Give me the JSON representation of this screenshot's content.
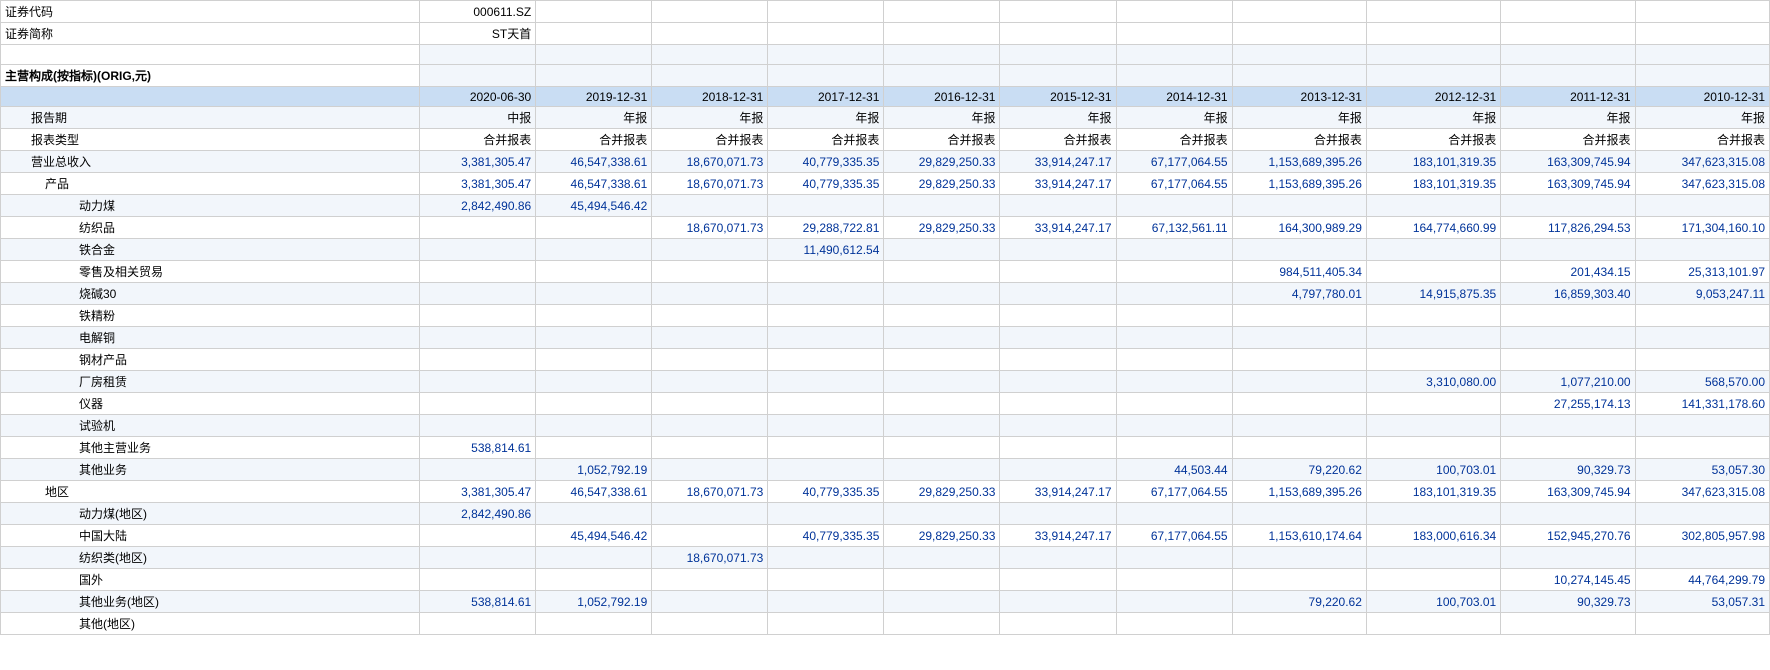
{
  "meta": {
    "code_label": "证券代码",
    "code_value": "000611.SZ",
    "name_label": "证券简称",
    "name_value": "ST天首"
  },
  "sectionTitle": "主营构成(按指标)(ORIG,元)",
  "dates": [
    "2020-06-30",
    "2019-12-31",
    "2018-12-31",
    "2017-12-31",
    "2016-12-31",
    "2015-12-31",
    "2014-12-31",
    "2013-12-31",
    "2012-12-31",
    "2011-12-31",
    "2010-12-31"
  ],
  "rows": [
    {
      "label": "报告期",
      "indent": 1,
      "style": "text",
      "vals": [
        "中报",
        "年报",
        "年报",
        "年报",
        "年报",
        "年报",
        "年报",
        "年报",
        "年报",
        "年报",
        "年报"
      ]
    },
    {
      "label": "报表类型",
      "indent": 1,
      "style": "text",
      "vals": [
        "合并报表",
        "合并报表",
        "合并报表",
        "合并报表",
        "合并报表",
        "合并报表",
        "合并报表",
        "合并报表",
        "合并报表",
        "合并报表",
        "合并报表"
      ]
    },
    {
      "label": "营业总收入",
      "indent": 1,
      "style": "num",
      "vals": [
        "3,381,305.47",
        "46,547,338.61",
        "18,670,071.73",
        "40,779,335.35",
        "29,829,250.33",
        "33,914,247.17",
        "67,177,064.55",
        "1,153,689,395.26",
        "183,101,319.35",
        "163,309,745.94",
        "347,623,315.08"
      ]
    },
    {
      "label": "产品",
      "indent": 2,
      "style": "num",
      "vals": [
        "3,381,305.47",
        "46,547,338.61",
        "18,670,071.73",
        "40,779,335.35",
        "29,829,250.33",
        "33,914,247.17",
        "67,177,064.55",
        "1,153,689,395.26",
        "183,101,319.35",
        "163,309,745.94",
        "347,623,315.08"
      ]
    },
    {
      "label": "动力煤",
      "indent": 3,
      "style": "num",
      "vals": [
        "2,842,490.86",
        "45,494,546.42",
        "",
        "",
        "",
        "",
        "",
        "",
        "",
        "",
        ""
      ]
    },
    {
      "label": "纺织品",
      "indent": 3,
      "style": "num",
      "vals": [
        "",
        "",
        "18,670,071.73",
        "29,288,722.81",
        "29,829,250.33",
        "33,914,247.17",
        "67,132,561.11",
        "164,300,989.29",
        "164,774,660.99",
        "117,826,294.53",
        "171,304,160.10"
      ]
    },
    {
      "label": "铁合金",
      "indent": 3,
      "style": "num",
      "vals": [
        "",
        "",
        "",
        "11,490,612.54",
        "",
        "",
        "",
        "",
        "",
        "",
        ""
      ]
    },
    {
      "label": "零售及相关贸易",
      "indent": 3,
      "style": "num",
      "vals": [
        "",
        "",
        "",
        "",
        "",
        "",
        "",
        "984,511,405.34",
        "",
        "201,434.15",
        "25,313,101.97"
      ]
    },
    {
      "label": "烧碱30",
      "indent": 3,
      "style": "num",
      "vals": [
        "",
        "",
        "",
        "",
        "",
        "",
        "",
        "4,797,780.01",
        "14,915,875.35",
        "16,859,303.40",
        "9,053,247.11"
      ]
    },
    {
      "label": "铁精粉",
      "indent": 3,
      "style": "num",
      "vals": [
        "",
        "",
        "",
        "",
        "",
        "",
        "",
        "",
        "",
        "",
        ""
      ]
    },
    {
      "label": "电解铜",
      "indent": 3,
      "style": "num",
      "vals": [
        "",
        "",
        "",
        "",
        "",
        "",
        "",
        "",
        "",
        "",
        ""
      ]
    },
    {
      "label": "钢材产品",
      "indent": 3,
      "style": "num",
      "vals": [
        "",
        "",
        "",
        "",
        "",
        "",
        "",
        "",
        "",
        "",
        ""
      ]
    },
    {
      "label": "厂房租赁",
      "indent": 3,
      "style": "num",
      "vals": [
        "",
        "",
        "",
        "",
        "",
        "",
        "",
        "",
        "3,310,080.00",
        "1,077,210.00",
        "568,570.00"
      ]
    },
    {
      "label": "仪器",
      "indent": 3,
      "style": "num",
      "vals": [
        "",
        "",
        "",
        "",
        "",
        "",
        "",
        "",
        "",
        "27,255,174.13",
        "141,331,178.60"
      ]
    },
    {
      "label": "试验机",
      "indent": 3,
      "style": "num",
      "vals": [
        "",
        "",
        "",
        "",
        "",
        "",
        "",
        "",
        "",
        "",
        ""
      ]
    },
    {
      "label": "其他主营业务",
      "indent": 3,
      "style": "num",
      "vals": [
        "538,814.61",
        "",
        "",
        "",
        "",
        "",
        "",
        "",
        "",
        "",
        ""
      ]
    },
    {
      "label": "其他业务",
      "indent": 3,
      "style": "num",
      "vals": [
        "",
        "1,052,792.19",
        "",
        "",
        "",
        "",
        "44,503.44",
        "79,220.62",
        "100,703.01",
        "90,329.73",
        "53,057.30"
      ]
    },
    {
      "label": "地区",
      "indent": 2,
      "style": "num",
      "vals": [
        "3,381,305.47",
        "46,547,338.61",
        "18,670,071.73",
        "40,779,335.35",
        "29,829,250.33",
        "33,914,247.17",
        "67,177,064.55",
        "1,153,689,395.26",
        "183,101,319.35",
        "163,309,745.94",
        "347,623,315.08"
      ]
    },
    {
      "label": "动力煤(地区)",
      "indent": 3,
      "style": "num",
      "vals": [
        "2,842,490.86",
        "",
        "",
        "",
        "",
        "",
        "",
        "",
        "",
        "",
        ""
      ]
    },
    {
      "label": "中国大陆",
      "indent": 3,
      "style": "num",
      "vals": [
        "",
        "45,494,546.42",
        "",
        "40,779,335.35",
        "29,829,250.33",
        "33,914,247.17",
        "67,177,064.55",
        "1,153,610,174.64",
        "183,000,616.34",
        "152,945,270.76",
        "302,805,957.98"
      ]
    },
    {
      "label": "纺织类(地区)",
      "indent": 3,
      "style": "num",
      "vals": [
        "",
        "",
        "18,670,071.73",
        "",
        "",
        "",
        "",
        "",
        "",
        "",
        ""
      ]
    },
    {
      "label": "国外",
      "indent": 3,
      "style": "num",
      "vals": [
        "",
        "",
        "",
        "",
        "",
        "",
        "",
        "",
        "",
        "10,274,145.45",
        "44,764,299.79"
      ]
    },
    {
      "label": "其他业务(地区)",
      "indent": 3,
      "style": "num",
      "vals": [
        "538,814.61",
        "1,052,792.19",
        "",
        "",
        "",
        "",
        "",
        "79,220.62",
        "100,703.01",
        "90,329.73",
        "53,057.31"
      ]
    },
    {
      "label": "其他(地区)",
      "indent": 3,
      "style": "num",
      "vals": [
        "",
        "",
        "",
        "",
        "",
        "",
        "",
        "",
        "",
        "",
        ""
      ]
    }
  ],
  "colors": {
    "num": "#003399",
    "bandEven": "#f2f6fb",
    "bandOdd": "#ffffff",
    "headerBand": "#c9ddf3",
    "border": "#d0d0d0"
  }
}
